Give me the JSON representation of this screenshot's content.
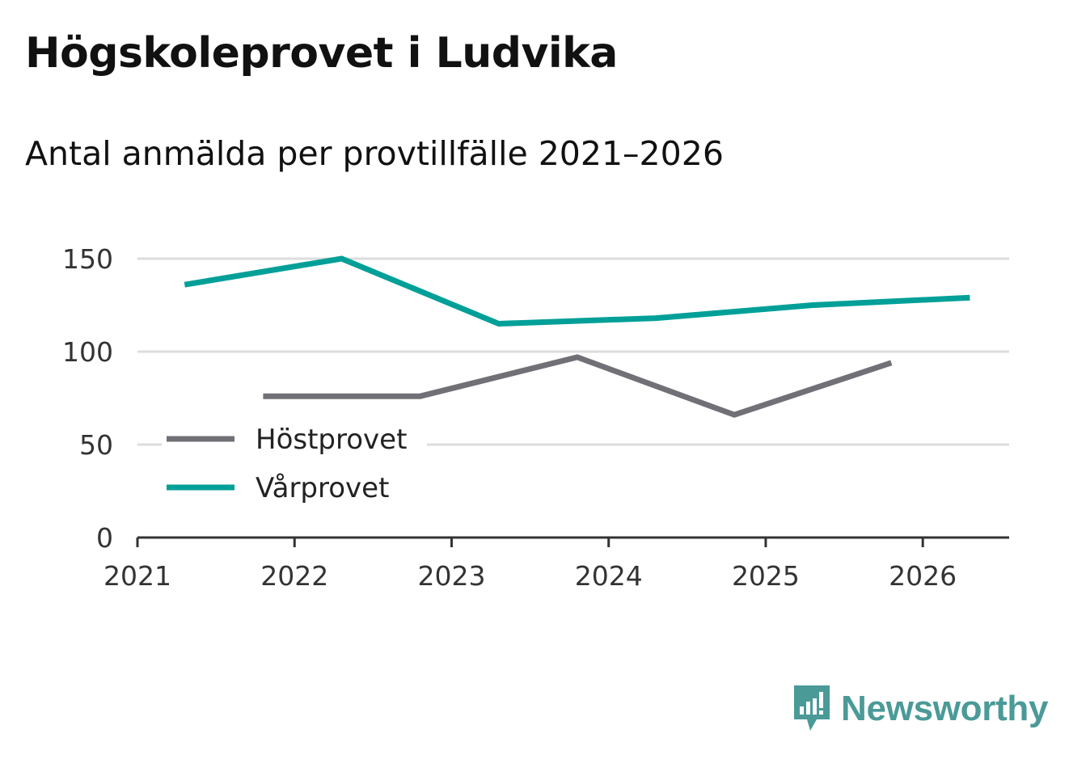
{
  "header": {
    "title": "Högskoleprovet i Ludvika",
    "subtitle": "Antal anmälda per provtillfälle 2021–2026"
  },
  "brand": {
    "name": "Newsworthy",
    "logo_icon": "bar-chart-speech-bubble-icon"
  },
  "colors": {
    "hostprovet": "#717077",
    "varprovet": "#00a098",
    "grid": "#dddddd",
    "axis": "#333333",
    "brand": "#4a9a98"
  },
  "chart_data": {
    "type": "line",
    "title": "Högskoleprovet i Ludvika",
    "subtitle": "Antal anmälda per provtillfälle 2021–2026",
    "xlabel": "",
    "ylabel": "",
    "xlim": [
      2021,
      2026.55
    ],
    "ylim": [
      0,
      150
    ],
    "x_ticks": [
      2021,
      2022,
      2023,
      2024,
      2025,
      2026
    ],
    "x_tick_labels": [
      "2021",
      "2022",
      "2023",
      "2024",
      "2025",
      "2026"
    ],
    "y_ticks": [
      0,
      50,
      100,
      150
    ],
    "y_tick_labels": [
      "0",
      "50",
      "100",
      "150"
    ],
    "grid": true,
    "legend_position": "lower-left",
    "series": [
      {
        "name": "Höstprovet",
        "color": "#717077",
        "x": [
          2021.8,
          2022.8,
          2023.8,
          2024.8,
          2025.8
        ],
        "values": [
          76,
          76,
          97,
          66,
          94
        ]
      },
      {
        "name": "Vårprovet",
        "color": "#00a098",
        "x": [
          2021.3,
          2022.3,
          2023.3,
          2024.3,
          2025.3,
          2026.3
        ],
        "values": [
          136,
          150,
          115,
          118,
          125,
          129
        ]
      }
    ]
  }
}
